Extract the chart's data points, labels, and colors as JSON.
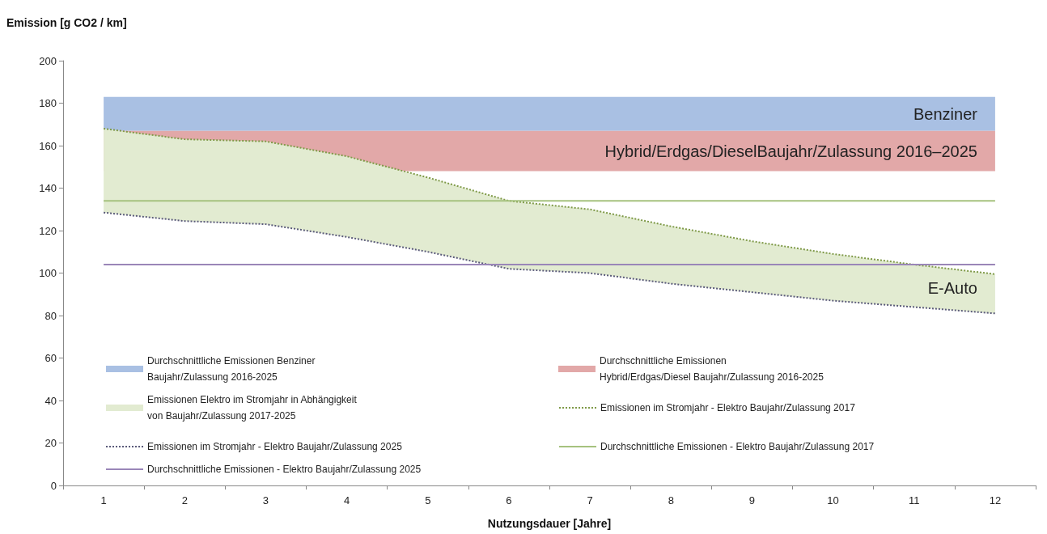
{
  "chart_data": {
    "type": "line",
    "ylabel": "Emission [g CO2 / km]",
    "xlabel": "Nutzungsdauer [Jahre]",
    "categories": [
      "1",
      "2",
      "3",
      "4",
      "5",
      "6",
      "7",
      "8",
      "9",
      "10",
      "11",
      "12"
    ],
    "ylim": [
      0,
      200
    ],
    "yticks": [
      0,
      20,
      40,
      60,
      80,
      100,
      120,
      140,
      160,
      180,
      200
    ],
    "grid": false,
    "legend": "bottom left",
    "series": [
      {
        "name": "Durchschnittliche Emissionen Benziner\nBaujahr/Zulassung 2016-2025",
        "type": "line",
        "color": "#a9c0e3",
        "values": [
          null,
          null,
          null,
          null,
          null,
          null,
          null,
          null,
          null,
          null,
          null,
          null
        ],
        "lower": [
          167,
          167,
          167,
          167,
          167,
          167,
          167,
          167,
          167,
          167,
          167,
          167
        ],
        "upper": [
          183,
          183,
          183,
          183,
          183,
          183,
          183,
          183,
          183,
          183,
          183,
          183
        ]
      },
      {
        "name": "Durchschnittliche Emissionen\nHybrid/Erdgas/Diesel Baujahr/Zulassung 2016-2025",
        "type": "line",
        "color": "#e2a8a8",
        "values": [
          null,
          null,
          null,
          null,
          null,
          null,
          null,
          null,
          null,
          null,
          null,
          null
        ],
        "lower": [
          148,
          148,
          148,
          148,
          148,
          148,
          148,
          148,
          148,
          148,
          148,
          148
        ],
        "upper": [
          167,
          167,
          167,
          167,
          167,
          167,
          167,
          167,
          167,
          167,
          167,
          167
        ]
      },
      {
        "name": "Emissionen Elektro im Stromjahr in Abhängigkeit\nvon Baujahr/Zulassung 2017-2025",
        "type": "line",
        "color": "#e2ebd1",
        "values": [
          null,
          null,
          null,
          null,
          null,
          null,
          null,
          null,
          null,
          null,
          null,
          null
        ],
        "lower": [
          128.5,
          124.5,
          123,
          117,
          110,
          102,
          100,
          95,
          91,
          87,
          84,
          81
        ],
        "upper": [
          168,
          163,
          162,
          155,
          145,
          134,
          130,
          122,
          115,
          109,
          104,
          99.5
        ]
      },
      {
        "name": "Emissionen im Stromjahr - Elektro Baujahr/Zulassung 2017",
        "type": "line",
        "line_style": "dotted",
        "color": "#7f9a48",
        "values": [
          168,
          163,
          162,
          155,
          145,
          134,
          130,
          122,
          115,
          109,
          104,
          99.5
        ]
      },
      {
        "name": "Emissionen im Stromjahr - Elektro Baujahr/Zulassung 2025",
        "type": "line",
        "line_style": "dotted",
        "color": "#5b5b7a",
        "values": [
          128.5,
          124.5,
          123,
          117,
          110,
          102,
          100,
          95,
          91,
          87,
          84,
          81
        ]
      },
      {
        "name": "Durchschnittliche Emissionen - Elektro Baujahr/Zulassung 2017",
        "type": "line",
        "line_style": "solid",
        "color": "#a6c27f",
        "values": [
          134,
          134,
          134,
          134,
          134,
          134,
          134,
          134,
          134,
          134,
          134,
          134
        ]
      },
      {
        "name": "Durchschnittliche Emissionen - Elektro Baujahr/Zulassung 2025",
        "type": "line",
        "line_style": "solid",
        "color": "#9a86b8",
        "values": [
          104,
          104,
          104,
          104,
          104,
          104,
          104,
          104,
          104,
          104,
          104,
          104
        ]
      }
    ],
    "annotations": [
      {
        "text": "Benziner",
        "x": "12",
        "y": 175
      },
      {
        "text": "Hybrid/Erdgas/DieselBaujahr/Zulassung 2016–2025",
        "x": "12",
        "y": 157.5
      },
      {
        "text": "E-Auto",
        "x": "12",
        "y": 93
      }
    ]
  }
}
